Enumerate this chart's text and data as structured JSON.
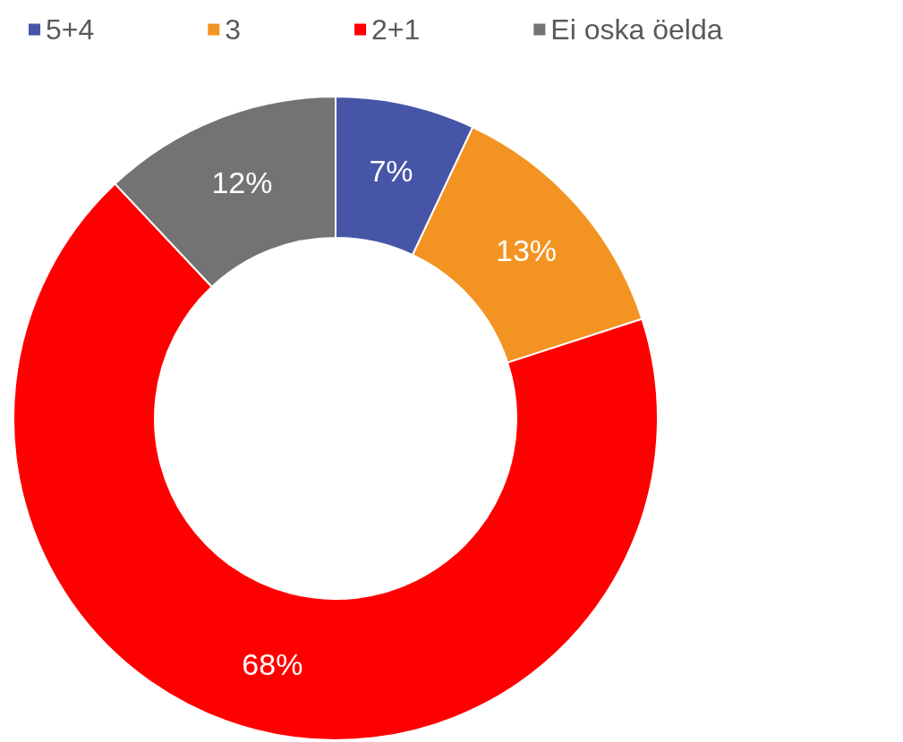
{
  "chart_data": {
    "type": "donut",
    "categories": [
      "5+4",
      "3",
      "2+1",
      "Ei oska öelda"
    ],
    "values": [
      7,
      13,
      68,
      12
    ],
    "colors": [
      "#4755a7",
      "#f39422",
      "#ff0000",
      "#737373"
    ],
    "value_labels": [
      "7%",
      "13%",
      "68%",
      "12%"
    ],
    "legend": "top"
  }
}
